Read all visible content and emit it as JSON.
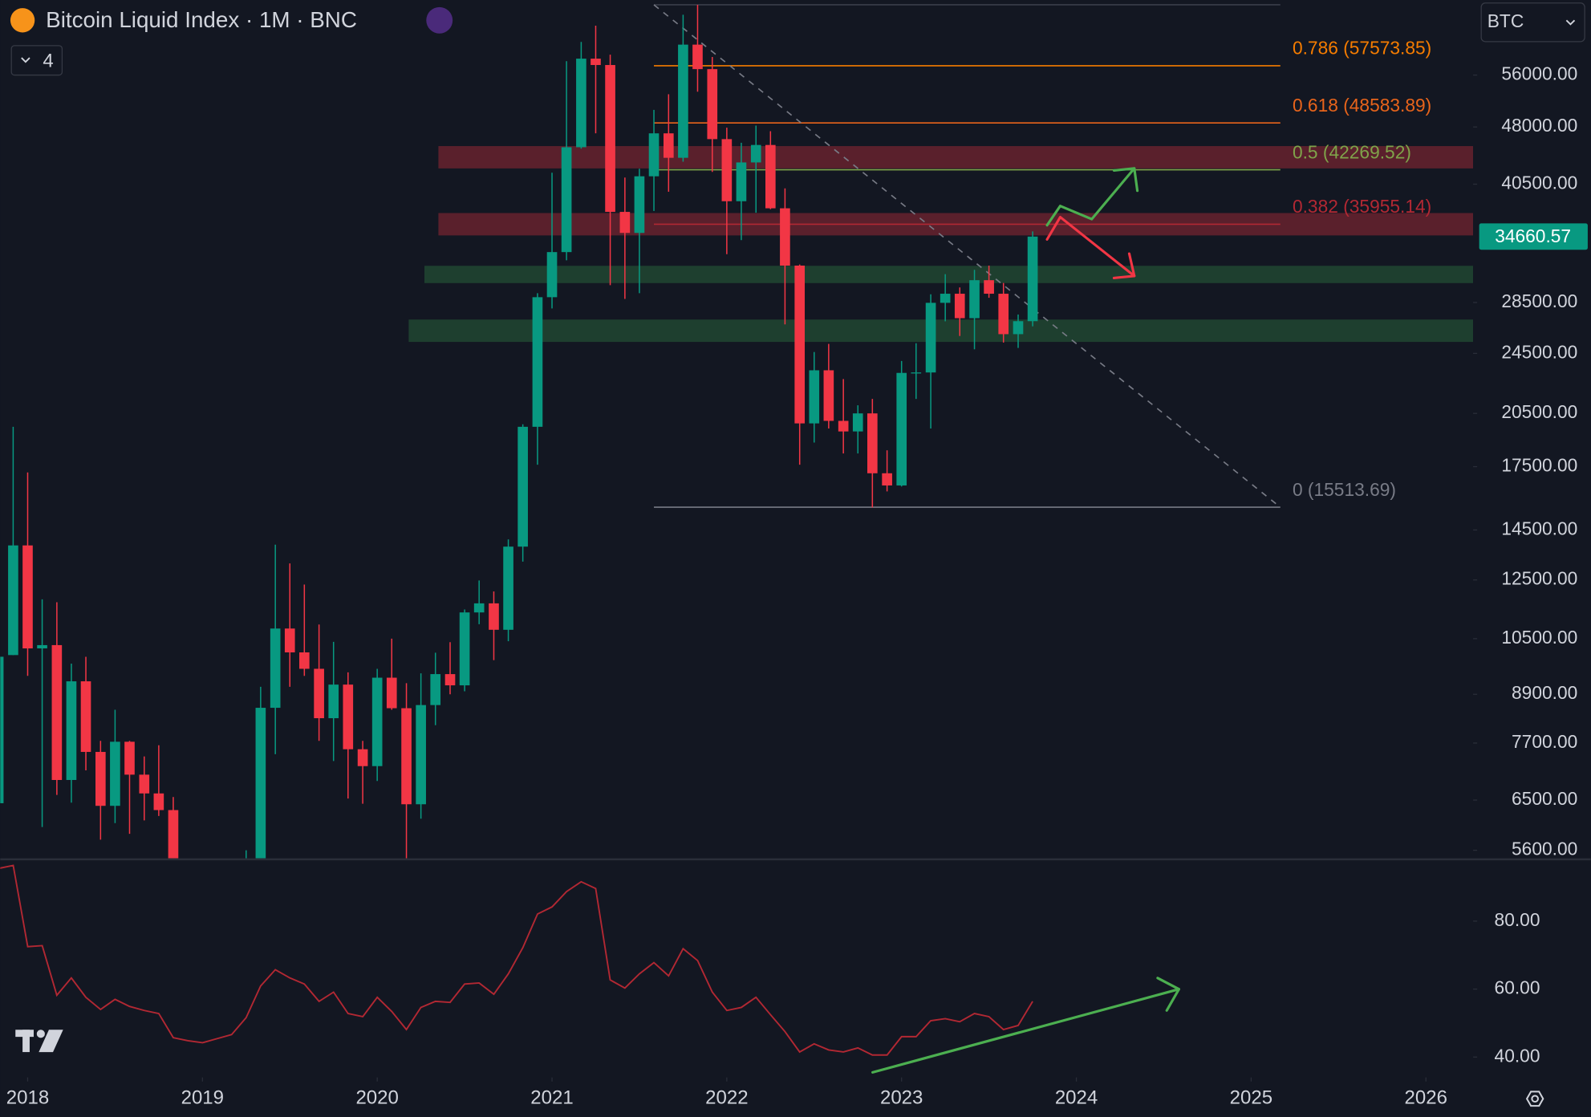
{
  "ui": {
    "symbol_button": "BTC",
    "indicators_count": "4"
  },
  "chart_data": [
    {
      "type": "candlestick",
      "title": "Bitcoin Liquid Index · 1M · BNC",
      "x": [
        2017.833,
        2017.917,
        2018,
        2018.083,
        2018.167,
        2018.25,
        2018.333,
        2018.417,
        2018.5,
        2018.583,
        2018.667,
        2018.75,
        2018.833,
        2018.917,
        2019,
        2019.083,
        2019.167,
        2019.25,
        2019.333,
        2019.417,
        2019.5,
        2019.583,
        2019.667,
        2019.75,
        2019.833,
        2019.917,
        2020,
        2020.083,
        2020.167,
        2020.25,
        2020.333,
        2020.417,
        2020.5,
        2020.583,
        2020.667,
        2020.75,
        2020.833,
        2020.917,
        2021,
        2021.083,
        2021.167,
        2021.25,
        2021.333,
        2021.417,
        2021.5,
        2021.583,
        2021.667,
        2021.75,
        2021.833,
        2021.917,
        2022,
        2022.083,
        2022.167,
        2022.25,
        2022.333,
        2022.417,
        2022.5,
        2022.583,
        2022.667,
        2022.75,
        2022.833,
        2022.917,
        2023,
        2023.083,
        2023.167,
        2023.25,
        2023.333,
        2023.417,
        2023.5,
        2023.583,
        2023.667,
        2023.75
      ],
      "open": [
        6440,
        10000,
        13850,
        10200,
        10300,
        6900,
        9250,
        7500,
        6390,
        7730,
        7010,
        6630,
        6310,
        4020,
        3740,
        3460,
        3850,
        4110,
        5350,
        8550,
        10820,
        10080,
        9600,
        8290,
        9160,
        7560,
        7190,
        9350,
        8540,
        6420,
        8620,
        9450,
        9140,
        11350,
        11660,
        10780,
        13800,
        19700,
        28950,
        33100,
        45200,
        58800,
        57700,
        37300,
        35040,
        41460,
        47100,
        43800,
        61300,
        57000,
        46300,
        38500,
        43200,
        45500,
        37700,
        31800,
        19900,
        23300,
        20050,
        19430,
        20500,
        17160,
        16550,
        23120,
        23150,
        28470,
        29250,
        27200,
        30450,
        29250,
        25940,
        26960
      ],
      "high": [
        11400,
        19700,
        17200,
        11800,
        11700,
        9750,
        9950,
        7750,
        8500,
        7750,
        7400,
        7650,
        6560,
        4300,
        4100,
        4190,
        4100,
        5600,
        9100,
        13880,
        13130,
        12330,
        10950,
        10400,
        9500,
        7750,
        9600,
        10500,
        9200,
        9470,
        10070,
        10390,
        11450,
        12480,
        12080,
        14100,
        19850,
        29300,
        41900,
        58350,
        61800,
        64850,
        59500,
        41300,
        42400,
        50500,
        52900,
        67000,
        69000,
        59100,
        47900,
        45800,
        48200,
        47400,
        40000,
        31900,
        24600,
        25200,
        22700,
        21000,
        21400,
        18370,
        23950,
        25250,
        29200,
        31000,
        29800,
        31400,
        31800,
        30200,
        27500,
        35200
      ],
      "low": [
        5500,
        10000,
        9400,
        6000,
        6600,
        6450,
        7100,
        5780,
        6070,
        5880,
        6120,
        6200,
        3550,
        3150,
        3400,
        3390,
        3700,
        4050,
        5330,
        7450,
        9100,
        9400,
        7750,
        7300,
        6530,
        6430,
        6880,
        8500,
        3800,
        6150,
        8120,
        8900,
        8980,
        10960,
        9850,
        10420,
        13200,
        17600,
        28000,
        32300,
        45000,
        47100,
        30000,
        28800,
        29300,
        37400,
        39600,
        43300,
        53300,
        42000,
        32900,
        34300,
        37200,
        37600,
        26700,
        17600,
        18800,
        19600,
        18200,
        18200,
        15500,
        16260,
        16500,
        21400,
        19600,
        26950,
        25800,
        24800,
        28900,
        25300,
        24900,
        26550
      ],
      "close": [
        9950,
        13850,
        10200,
        10300,
        6900,
        9250,
        7500,
        6390,
        7730,
        7010,
        6630,
        6310,
        4020,
        3740,
        3460,
        3850,
        4110,
        5350,
        8550,
        10820,
        10080,
        9600,
        8290,
        9160,
        7560,
        7190,
        9350,
        8540,
        6420,
        8620,
        9450,
        9140,
        11350,
        11660,
        10780,
        13800,
        19700,
        28950,
        33100,
        45200,
        58800,
        57700,
        37300,
        35040,
        41460,
        47100,
        43800,
        61300,
        57000,
        46300,
        38500,
        43200,
        45500,
        37700,
        31800,
        19900,
        23300,
        20050,
        19430,
        20500,
        17160,
        16550,
        23120,
        23150,
        28470,
        29250,
        27200,
        30450,
        29250,
        25940,
        26960,
        34660.57
      ],
      "up_color": "#089981",
      "down_color": "#f23645",
      "log_scale": true,
      "xlim": [
        2017.843,
        2026.27
      ],
      "xticks": [
        2018,
        2019,
        2020,
        2021,
        2022,
        2023,
        2024,
        2025,
        2026
      ],
      "ylim": [
        5468,
        69990
      ],
      "yticks": [
        {
          "value": 56000,
          "label": "56000.00"
        },
        {
          "value": 48000,
          "label": "48000.00"
        },
        {
          "value": 40500,
          "label": "40500.00"
        },
        {
          "value": 28500,
          "label": "28500.00"
        },
        {
          "value": 24500,
          "label": "24500.00"
        },
        {
          "value": 20500,
          "label": "20500.00"
        },
        {
          "value": 17500,
          "label": "17500.00"
        },
        {
          "value": 14500,
          "label": "14500.00"
        },
        {
          "value": 12500,
          "label": "12500.00"
        },
        {
          "value": 10500,
          "label": "10500.00"
        },
        {
          "value": 8900,
          "label": "8900.00"
        },
        {
          "value": 7700,
          "label": "7700.00"
        },
        {
          "value": 6500,
          "label": "6500.00"
        },
        {
          "value": 5600,
          "label": "5600.00"
        }
      ],
      "fib": {
        "x": [
          2021.583,
          2025.167
        ],
        "levels": [
          {
            "label": null,
            "value": 69000,
            "color": "#3a3e4a"
          },
          {
            "label": "0.786 (57573.85)",
            "value": 57573.85,
            "color": "#f57c00"
          },
          {
            "label": "0.618 (48583.89)",
            "value": 48583.89,
            "color": "#e8641b"
          },
          {
            "label": "0.5 (42269.52)",
            "value": 42269.52,
            "color": "#7fa34a"
          },
          {
            "label": "0.382 (35955.14)",
            "value": 35955.14,
            "color": "#b22833"
          },
          {
            "label": "0 (15513.69)",
            "value": 15513.69,
            "color": "#787b86"
          }
        ]
      },
      "zones": [
        {
          "x": 2020.35,
          "ylim": [
            42440,
            45350
          ],
          "color": "rgba(150,40,52,0.55)"
        },
        {
          "x": 2020.35,
          "ylim": [
            34780,
            37170
          ],
          "color": "rgba(150,40,52,0.55)"
        },
        {
          "x": 2020.27,
          "ylim": [
            30190,
            31780
          ],
          "color": "rgba(38,90,56,0.6)"
        },
        {
          "x": 2020.18,
          "ylim": [
            25350,
            27090
          ],
          "color": "rgba(38,90,56,0.6)"
        }
      ]
    },
    {
      "type": "line",
      "x": [
        2017.833,
        2017.917,
        2018,
        2018.083,
        2018.167,
        2018.25,
        2018.333,
        2018.417,
        2018.5,
        2018.583,
        2018.667,
        2018.75,
        2018.833,
        2018.917,
        2019,
        2019.083,
        2019.167,
        2019.25,
        2019.333,
        2019.417,
        2019.5,
        2019.583,
        2019.667,
        2019.75,
        2019.833,
        2019.917,
        2020,
        2020.083,
        2020.167,
        2020.25,
        2020.333,
        2020.417,
        2020.5,
        2020.583,
        2020.667,
        2020.75,
        2020.833,
        2020.917,
        2021,
        2021.083,
        2021.167,
        2021.25,
        2021.333,
        2021.417,
        2021.5,
        2021.583,
        2021.667,
        2021.75,
        2021.833,
        2021.917,
        2022,
        2022.083,
        2022.167,
        2022.25,
        2022.333,
        2022.417,
        2022.5,
        2022.583,
        2022.667,
        2022.75,
        2022.833,
        2022.917,
        2023,
        2023.083,
        2023.167,
        2023.25,
        2023.333,
        2023.417,
        2023.5,
        2023.583,
        2023.667,
        2023.75
      ],
      "series": [
        {
          "color": "#b22833",
          "values": [
            95.5,
            96.4,
            72.5,
            72.8,
            58.2,
            63.3,
            57.6,
            54,
            57,
            54.9,
            53.7,
            52.8,
            45.7,
            44.8,
            44.2,
            45.4,
            46.6,
            51.6,
            60.9,
            65.7,
            63.3,
            61.5,
            56.4,
            59.1,
            52.8,
            51.9,
            57.6,
            53.4,
            48.1,
            54.6,
            56.4,
            56.1,
            61.5,
            61.8,
            58.5,
            64.5,
            72.2,
            82.1,
            84.2,
            88.7,
            91.6,
            89.6,
            62.7,
            60.3,
            64.5,
            67.8,
            63.9,
            71.9,
            68.4,
            59.1,
            53.7,
            54.6,
            57.6,
            52.5,
            47.5,
            41.5,
            43.9,
            42.1,
            41.5,
            42.7,
            40.6,
            40.6,
            46,
            46,
            50.7,
            51.3,
            50.4,
            52.8,
            51.9,
            48.1,
            49.3,
            56.4
          ]
        }
      ],
      "xlim": [
        2017.843,
        2026.27
      ],
      "ylim": [
        34.6,
        97.9
      ],
      "yticks": [
        {
          "value": 80,
          "label": "80.00"
        },
        {
          "value": 60,
          "label": "60.00"
        },
        {
          "value": 40,
          "label": "40.00"
        }
      ]
    }
  ]
}
